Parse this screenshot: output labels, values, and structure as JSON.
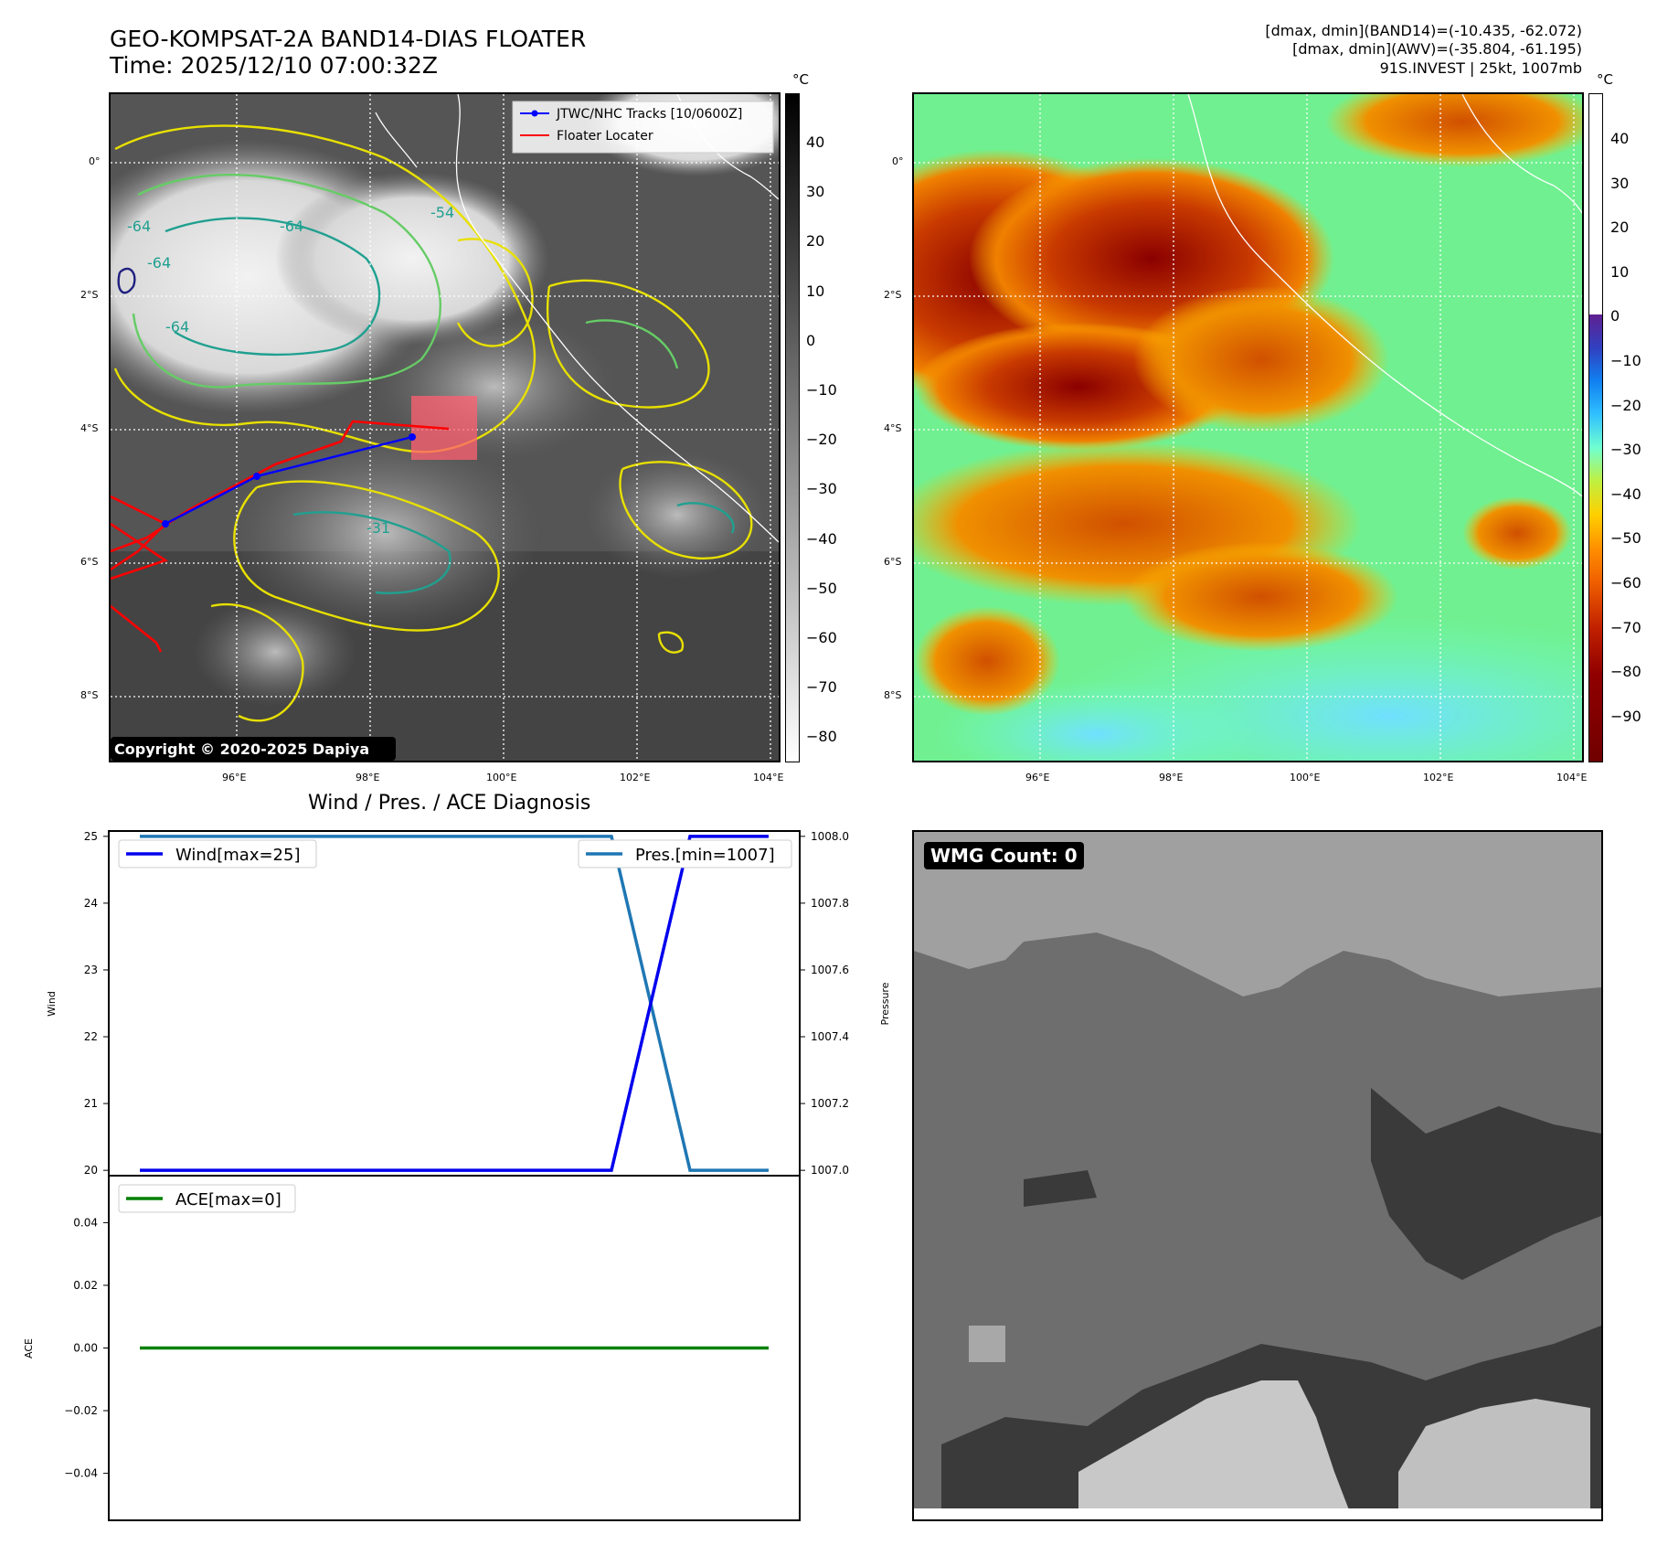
{
  "header": {
    "title_line1": "GEO-KOMPSAT-2A BAND14-DIAS FLOATER",
    "title_line2": "Time: 2025/12/10 07:00:32Z",
    "info_line1": "[dmax, dmin](BAND14)=(-10.435, -62.072)",
    "info_line2": "[dmax, dmin](AWV)=(-35.804, -61.195)",
    "info_line3": "91S.INVEST | 25kt, 1007mb"
  },
  "maps": {
    "lat_labels": [
      "0°",
      "2°S",
      "4°S",
      "6°S",
      "8°S"
    ],
    "lon_labels": [
      "96°E",
      "98°E",
      "100°E",
      "102°E",
      "104°E"
    ],
    "contour_labels": [
      "-64",
      "-54",
      "-31"
    ],
    "copyright": "Copyright © 2020-2025 Dapiya",
    "legend": {
      "track_label": "JTWC/NHC Tracks [10/0600Z]",
      "locator_label": "Floater Locater",
      "track_color": "#0000ff",
      "locator_color": "#ff0000"
    },
    "colorbar_left": {
      "unit": "°C",
      "ticks": [
        "40",
        "30",
        "20",
        "10",
        "0",
        "−10",
        "−20",
        "−30",
        "−40",
        "−50",
        "−60",
        "−70",
        "−80"
      ]
    },
    "colorbar_right": {
      "unit": "°C",
      "ticks": [
        "40",
        "30",
        "20",
        "10",
        "0",
        "−10",
        "−20",
        "−30",
        "−40",
        "−50",
        "−60",
        "−70",
        "−80",
        "−90"
      ]
    }
  },
  "chart_data": [
    {
      "type": "line",
      "title": "Wind / Pres. / ACE Diagnosis",
      "x": [
        0,
        1,
        2,
        3,
        4,
        5,
        6,
        7,
        8
      ],
      "series": [
        {
          "name": "Wind[max=25]",
          "axis": "left",
          "color": "#0000ee",
          "values": [
            20,
            20,
            20,
            20,
            20,
            20,
            20,
            25,
            25
          ]
        },
        {
          "name": "Pres.[min=1007]",
          "axis": "right",
          "color": "#1f77b4",
          "values": [
            1008,
            1008,
            1008,
            1008,
            1008,
            1008,
            1008,
            1007,
            1007
          ]
        }
      ],
      "ylabel": "Wind",
      "ylabel_right": "Pressure",
      "ylim": [
        19.92,
        25.08
      ],
      "ylim_right": [
        1006.984,
        1008.016
      ],
      "yticks": [
        "20",
        "21",
        "22",
        "23",
        "24",
        "25"
      ],
      "yticks_right": [
        "1007.0",
        "1007.2",
        "1007.4",
        "1007.6",
        "1007.8",
        "1008.0"
      ]
    },
    {
      "type": "line",
      "x": [
        0,
        1,
        2,
        3,
        4,
        5,
        6,
        7,
        8
      ],
      "series": [
        {
          "name": "ACE[max=0]",
          "color": "#008000",
          "values": [
            0,
            0,
            0,
            0,
            0,
            0,
            0,
            0,
            0
          ]
        }
      ],
      "ylabel": "ACE",
      "ylim": [
        -0.055,
        0.055
      ],
      "yticks": [
        "0.04",
        "0.02",
        "0.00",
        "−0.02",
        "−0.04"
      ]
    }
  ],
  "wmg": {
    "label": "WMG Count: 0"
  }
}
